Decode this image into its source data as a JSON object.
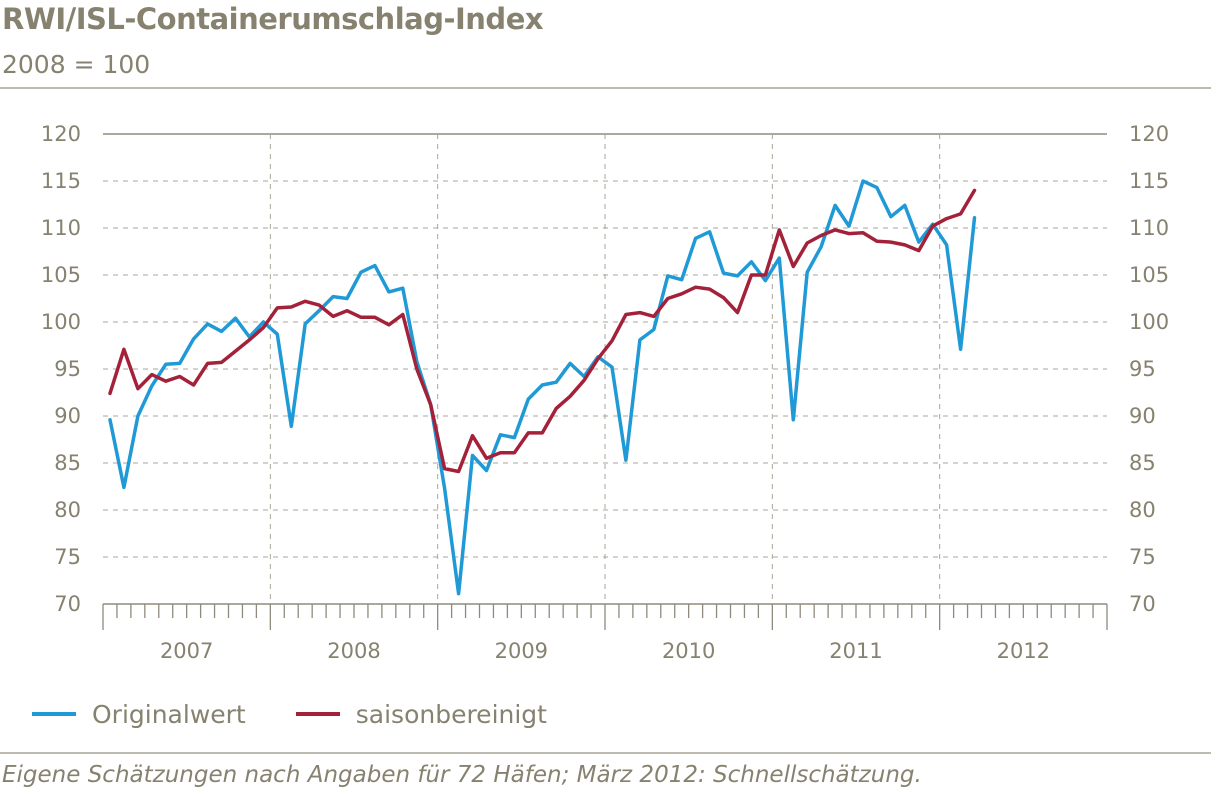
{
  "chart_data": {
    "type": "line",
    "title": "RWI/ISL-Containerumschlag-Index",
    "subtitle": "2008 = 100",
    "x_unit": "month",
    "x_start": "2007-01",
    "years": [
      "2007",
      "2008",
      "2009",
      "2010",
      "2011",
      "2012"
    ],
    "ylim": [
      70,
      120
    ],
    "yticks": [
      70,
      75,
      80,
      85,
      90,
      95,
      100,
      105,
      110,
      115,
      120
    ],
    "y_axis_both_sides": true,
    "grid": "dashed",
    "legend_position": "bottom-left",
    "series": [
      {
        "name": "Originalwert",
        "color": "#1f9ad6",
        "values": [
          89.6,
          82.4,
          90.0,
          93.2,
          95.5,
          95.6,
          98.2,
          99.8,
          99.0,
          100.4,
          98.4,
          100.0,
          98.7,
          88.9,
          99.8,
          101.2,
          102.7,
          102.5,
          105.3,
          106.0,
          103.2,
          103.6,
          95.8,
          91.2,
          82.3,
          71.1,
          85.8,
          84.2,
          88.0,
          87.7,
          91.8,
          93.3,
          93.6,
          95.6,
          94.2,
          96.3,
          95.2,
          85.3,
          98.1,
          99.2,
          104.9,
          104.5,
          108.9,
          109.6,
          105.2,
          104.9,
          106.4,
          104.4,
          106.8,
          89.6,
          105.3,
          108.0,
          112.4,
          110.2,
          115.0,
          114.3,
          111.2,
          112.4,
          108.5,
          110.4,
          108.2,
          97.1,
          111.1
        ]
      },
      {
        "name": "saisonbereinigt",
        "color": "#a3223a",
        "values": [
          92.4,
          97.1,
          92.9,
          94.4,
          93.7,
          94.2,
          93.3,
          95.6,
          95.7,
          96.9,
          98.1,
          99.4,
          101.5,
          101.6,
          102.2,
          101.8,
          100.6,
          101.2,
          100.5,
          100.5,
          99.7,
          100.8,
          95.0,
          91.2,
          84.4,
          84.1,
          87.9,
          85.5,
          86.1,
          86.1,
          88.2,
          88.2,
          90.8,
          92.1,
          93.8,
          96.1,
          98.0,
          100.8,
          101.0,
          100.6,
          102.5,
          103.0,
          103.7,
          103.5,
          102.6,
          101.0,
          105.0,
          105.0,
          109.8,
          105.9,
          108.4,
          109.2,
          109.8,
          109.4,
          109.5,
          108.6,
          108.5,
          108.2,
          107.6,
          110.2,
          111.0,
          111.5,
          114.0
        ]
      }
    ],
    "source": "Eigene Schätzungen nach Angaben für 72 Häfen; März 2012: Schnellschätzung."
  }
}
